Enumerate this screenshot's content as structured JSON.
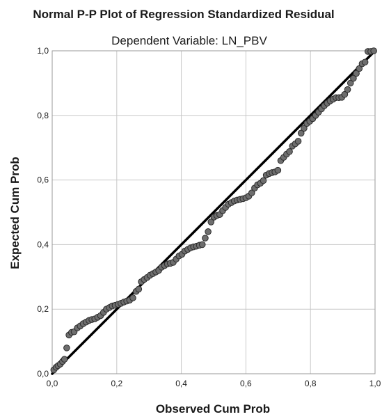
{
  "chart_data": {
    "type": "scatter",
    "title": "Normal P-P Plot of Regression Standardized Residual",
    "subtitle": "Dependent Variable: LN_PBV",
    "xlabel": "Observed Cum Prob",
    "ylabel": "Expected Cum Prob",
    "xlim": [
      0,
      1
    ],
    "ylim": [
      0,
      1
    ],
    "xticks": [
      "0,0",
      "0,2",
      "0,4",
      "0,6",
      "0,8",
      "1,0"
    ],
    "yticks": [
      "0,0",
      "0,2",
      "0,4",
      "0,6",
      "0,8",
      "1,0"
    ],
    "grid": true,
    "reference_line": {
      "from": [
        0,
        0
      ],
      "to": [
        1,
        1
      ]
    },
    "colors": {
      "point_fill": "#6e6e6e",
      "point_stroke": "#2b2b2b",
      "grid": "#c8c8c8",
      "line": "#000000"
    },
    "points": [
      {
        "x": 0.005,
        "y": 0.012
      },
      {
        "x": 0.012,
        "y": 0.02
      },
      {
        "x": 0.018,
        "y": 0.025
      },
      {
        "x": 0.025,
        "y": 0.03
      },
      {
        "x": 0.032,
        "y": 0.038
      },
      {
        "x": 0.038,
        "y": 0.045
      },
      {
        "x": 0.045,
        "y": 0.08
      },
      {
        "x": 0.052,
        "y": 0.12
      },
      {
        "x": 0.06,
        "y": 0.128
      },
      {
        "x": 0.068,
        "y": 0.13
      },
      {
        "x": 0.078,
        "y": 0.142
      },
      {
        "x": 0.087,
        "y": 0.148
      },
      {
        "x": 0.096,
        "y": 0.155
      },
      {
        "x": 0.105,
        "y": 0.16
      },
      {
        "x": 0.114,
        "y": 0.165
      },
      {
        "x": 0.123,
        "y": 0.168
      },
      {
        "x": 0.132,
        "y": 0.17
      },
      {
        "x": 0.141,
        "y": 0.175
      },
      {
        "x": 0.15,
        "y": 0.18
      },
      {
        "x": 0.159,
        "y": 0.19
      },
      {
        "x": 0.168,
        "y": 0.2
      },
      {
        "x": 0.177,
        "y": 0.205
      },
      {
        "x": 0.186,
        "y": 0.21
      },
      {
        "x": 0.195,
        "y": 0.212
      },
      {
        "x": 0.204,
        "y": 0.215
      },
      {
        "x": 0.213,
        "y": 0.218
      },
      {
        "x": 0.222,
        "y": 0.222
      },
      {
        "x": 0.231,
        "y": 0.225
      },
      {
        "x": 0.24,
        "y": 0.228
      },
      {
        "x": 0.25,
        "y": 0.235
      },
      {
        "x": 0.26,
        "y": 0.255
      },
      {
        "x": 0.268,
        "y": 0.262
      },
      {
        "x": 0.276,
        "y": 0.285
      },
      {
        "x": 0.285,
        "y": 0.292
      },
      {
        "x": 0.294,
        "y": 0.298
      },
      {
        "x": 0.303,
        "y": 0.305
      },
      {
        "x": 0.312,
        "y": 0.31
      },
      {
        "x": 0.321,
        "y": 0.315
      },
      {
        "x": 0.33,
        "y": 0.32
      },
      {
        "x": 0.339,
        "y": 0.33
      },
      {
        "x": 0.348,
        "y": 0.335
      },
      {
        "x": 0.357,
        "y": 0.34
      },
      {
        "x": 0.366,
        "y": 0.342
      },
      {
        "x": 0.375,
        "y": 0.345
      },
      {
        "x": 0.384,
        "y": 0.355
      },
      {
        "x": 0.393,
        "y": 0.365
      },
      {
        "x": 0.402,
        "y": 0.37
      },
      {
        "x": 0.411,
        "y": 0.38
      },
      {
        "x": 0.42,
        "y": 0.385
      },
      {
        "x": 0.429,
        "y": 0.39
      },
      {
        "x": 0.438,
        "y": 0.393
      },
      {
        "x": 0.447,
        "y": 0.395
      },
      {
        "x": 0.456,
        "y": 0.398
      },
      {
        "x": 0.465,
        "y": 0.4
      },
      {
        "x": 0.474,
        "y": 0.42
      },
      {
        "x": 0.483,
        "y": 0.44
      },
      {
        "x": 0.492,
        "y": 0.47
      },
      {
        "x": 0.501,
        "y": 0.485
      },
      {
        "x": 0.51,
        "y": 0.49
      },
      {
        "x": 0.519,
        "y": 0.493
      },
      {
        "x": 0.528,
        "y": 0.505
      },
      {
        "x": 0.537,
        "y": 0.515
      },
      {
        "x": 0.546,
        "y": 0.525
      },
      {
        "x": 0.555,
        "y": 0.53
      },
      {
        "x": 0.564,
        "y": 0.535
      },
      {
        "x": 0.573,
        "y": 0.538
      },
      {
        "x": 0.582,
        "y": 0.54
      },
      {
        "x": 0.591,
        "y": 0.542
      },
      {
        "x": 0.6,
        "y": 0.545
      },
      {
        "x": 0.609,
        "y": 0.55
      },
      {
        "x": 0.618,
        "y": 0.56
      },
      {
        "x": 0.627,
        "y": 0.575
      },
      {
        "x": 0.636,
        "y": 0.585
      },
      {
        "x": 0.645,
        "y": 0.59
      },
      {
        "x": 0.654,
        "y": 0.598
      },
      {
        "x": 0.663,
        "y": 0.615
      },
      {
        "x": 0.672,
        "y": 0.62
      },
      {
        "x": 0.681,
        "y": 0.623
      },
      {
        "x": 0.69,
        "y": 0.625
      },
      {
        "x": 0.699,
        "y": 0.63
      },
      {
        "x": 0.708,
        "y": 0.66
      },
      {
        "x": 0.717,
        "y": 0.67
      },
      {
        "x": 0.726,
        "y": 0.68
      },
      {
        "x": 0.735,
        "y": 0.688
      },
      {
        "x": 0.744,
        "y": 0.705
      },
      {
        "x": 0.753,
        "y": 0.712
      },
      {
        "x": 0.762,
        "y": 0.72
      },
      {
        "x": 0.771,
        "y": 0.745
      },
      {
        "x": 0.78,
        "y": 0.76
      },
      {
        "x": 0.789,
        "y": 0.775
      },
      {
        "x": 0.798,
        "y": 0.782
      },
      {
        "x": 0.807,
        "y": 0.79
      },
      {
        "x": 0.816,
        "y": 0.8
      },
      {
        "x": 0.825,
        "y": 0.81
      },
      {
        "x": 0.834,
        "y": 0.82
      },
      {
        "x": 0.843,
        "y": 0.83
      },
      {
        "x": 0.852,
        "y": 0.838
      },
      {
        "x": 0.861,
        "y": 0.845
      },
      {
        "x": 0.87,
        "y": 0.85
      },
      {
        "x": 0.879,
        "y": 0.855
      },
      {
        "x": 0.888,
        "y": 0.855
      },
      {
        "x": 0.897,
        "y": 0.856
      },
      {
        "x": 0.906,
        "y": 0.865
      },
      {
        "x": 0.915,
        "y": 0.88
      },
      {
        "x": 0.924,
        "y": 0.9
      },
      {
        "x": 0.933,
        "y": 0.915
      },
      {
        "x": 0.942,
        "y": 0.93
      },
      {
        "x": 0.951,
        "y": 0.945
      },
      {
        "x": 0.96,
        "y": 0.96
      },
      {
        "x": 0.969,
        "y": 0.965
      },
      {
        "x": 0.978,
        "y": 0.998
      },
      {
        "x": 0.987,
        "y": 0.998
      },
      {
        "x": 0.996,
        "y": 1.0
      }
    ]
  }
}
